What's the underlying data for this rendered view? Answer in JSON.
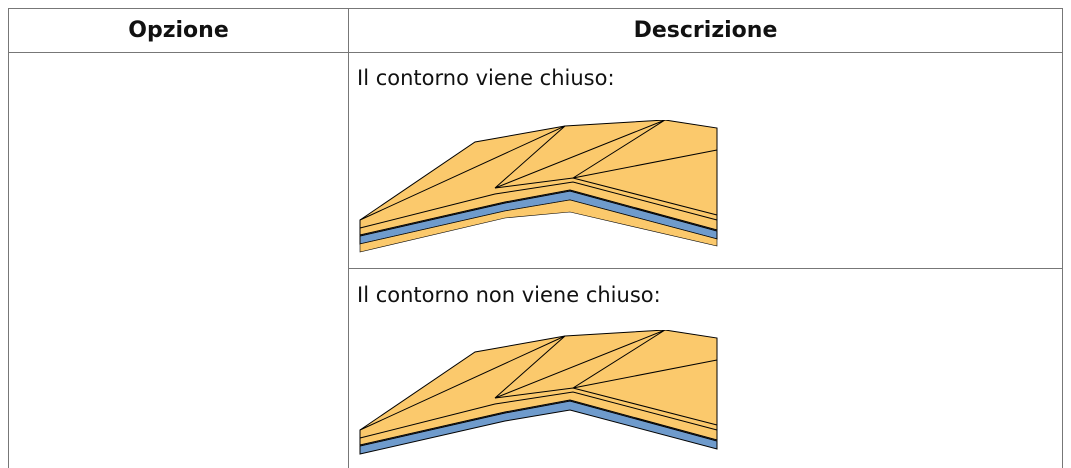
{
  "table": {
    "headers": [
      "Opzione",
      "Descrizione"
    ],
    "rows": [
      [
        "Il contorno viene chiuso:"
      ],
      [
        "Il contorno non viene chiuso:"
      ]
    ]
  }
}
